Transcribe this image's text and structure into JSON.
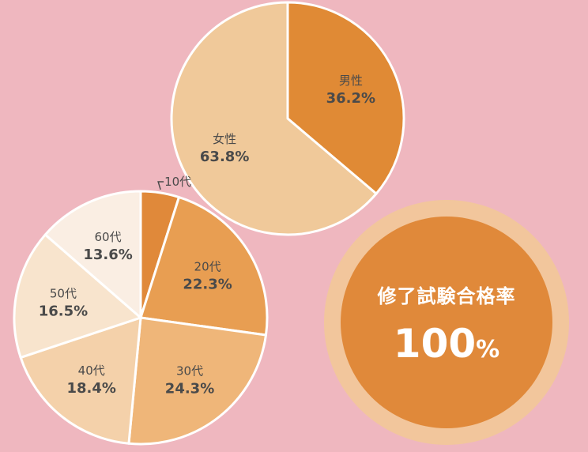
{
  "chart_data": [
    {
      "type": "pie",
      "categories": [
        "男性",
        "女性"
      ],
      "values": [
        36.2,
        63.8
      ],
      "value_labels": [
        "36.2%",
        "63.8%"
      ],
      "colors": [
        "#e08a35",
        "#f0c99a"
      ]
    },
    {
      "type": "pie",
      "categories": [
        "10代",
        "20代",
        "30代",
        "40代",
        "50代",
        "60代"
      ],
      "values": [
        4.9,
        22.3,
        24.3,
        18.4,
        16.5,
        13.6
      ],
      "value_labels": [
        "",
        "22.3%",
        "24.3%",
        "18.4%",
        "16.5%",
        "13.6%"
      ],
      "colors": [
        "#e0893a",
        "#e89e52",
        "#efb679",
        "#f4d1aa",
        "#f8e4cd",
        "#faeee3"
      ]
    }
  ],
  "badge": {
    "title": "修了試験合格率",
    "value": "100",
    "unit": "%",
    "ring_color": "#f2c69c",
    "fill_color": "#e0893a"
  }
}
